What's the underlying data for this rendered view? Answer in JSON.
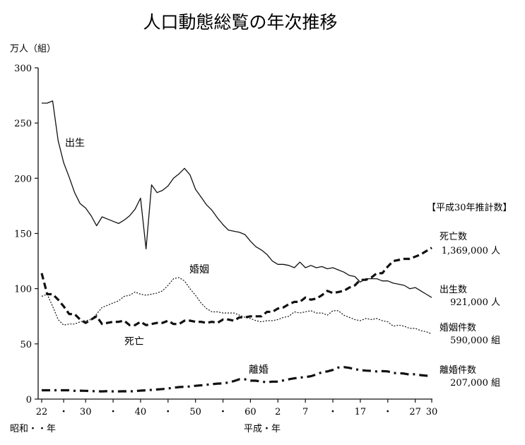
{
  "chart_data": {
    "type": "line",
    "title": "人口動態総覧の年次推移",
    "ylabel": "万人（組）",
    "ylim": [
      0,
      300
    ],
    "y_ticks": [
      "0",
      "50",
      "100",
      "150",
      "200",
      "250",
      "300"
    ],
    "x_ticks": [
      "22",
      "・",
      "30",
      "・",
      "40",
      "・",
      "50",
      "・",
      "60",
      "2",
      "7",
      "・",
      "17",
      "・",
      "27",
      "30"
    ],
    "era_labels": [
      "昭和・・年",
      "平成・年"
    ],
    "grid": false,
    "legend": "inline-right",
    "note_header": "【平成30年推計数】",
    "series": [
      {
        "name": "出生",
        "end_label": "出生数",
        "end_value": "921,000 人",
        "style": "solid",
        "x": [
          1947,
          1948,
          1949,
          1950,
          1951,
          1952,
          1953,
          1954,
          1955,
          1956,
          1957,
          1958,
          1959,
          1960,
          1961,
          1962,
          1963,
          1964,
          1965,
          1966,
          1967,
          1968,
          1969,
          1970,
          1971,
          1972,
          1973,
          1974,
          1975,
          1976,
          1977,
          1978,
          1979,
          1980,
          1981,
          1982,
          1983,
          1984,
          1985,
          1986,
          1987,
          1988,
          1989,
          1990,
          1991,
          1992,
          1993,
          1994,
          1995,
          1996,
          1997,
          1998,
          1999,
          2000,
          2001,
          2002,
          2003,
          2004,
          2005,
          2006,
          2007,
          2008,
          2009,
          2010,
          2011,
          2012,
          2013,
          2014,
          2015,
          2016,
          2017,
          2018
        ],
        "values": [
          268,
          268,
          270,
          234,
          214,
          201,
          187,
          177,
          173,
          166,
          157,
          165,
          163,
          161,
          159,
          162,
          166,
          172,
          182,
          136,
          194,
          187,
          189,
          193,
          200,
          204,
          209,
          203,
          190,
          183,
          176,
          171,
          164,
          158,
          153,
          152,
          151,
          149,
          143,
          138,
          135,
          131,
          125,
          122,
          122,
          121,
          119,
          124,
          119,
          121,
          119,
          120,
          118,
          119,
          117,
          115,
          112,
          111,
          106,
          109,
          109,
          109,
          107,
          107,
          105,
          104,
          103,
          100,
          101,
          98,
          95,
          92
        ]
      },
      {
        "name": "死亡",
        "end_label": "死亡数",
        "end_value": "1,369,000 人",
        "style": "dashed",
        "x": [
          1947,
          1948,
          1949,
          1950,
          1951,
          1952,
          1953,
          1954,
          1955,
          1956,
          1957,
          1958,
          1959,
          1960,
          1961,
          1962,
          1963,
          1964,
          1965,
          1966,
          1967,
          1968,
          1969,
          1970,
          1971,
          1972,
          1973,
          1974,
          1975,
          1976,
          1977,
          1978,
          1979,
          1980,
          1981,
          1982,
          1983,
          1984,
          1985,
          1986,
          1987,
          1988,
          1989,
          1990,
          1991,
          1992,
          1993,
          1994,
          1995,
          1996,
          1997,
          1998,
          1999,
          2000,
          2001,
          2002,
          2003,
          2004,
          2005,
          2006,
          2007,
          2008,
          2009,
          2010,
          2011,
          2012,
          2013,
          2014,
          2015,
          2016,
          2017,
          2018
        ],
        "values": [
          114,
          95,
          95,
          90,
          84,
          77,
          77,
          72,
          69,
          72,
          75,
          68,
          69,
          70,
          70,
          71,
          67,
          67,
          70,
          67,
          68,
          69,
          69,
          71,
          68,
          68,
          71,
          71,
          70,
          70,
          69,
          70,
          69,
          72,
          72,
          71,
          74,
          74,
          75,
          75,
          75,
          79,
          79,
          82,
          83,
          86,
          88,
          88,
          92,
          90,
          91,
          94,
          98,
          96,
          97,
          98,
          101,
          103,
          108,
          108,
          110,
          114,
          114,
          120,
          125,
          126,
          127,
          127,
          129,
          131,
          134,
          137
        ]
      },
      {
        "name": "婚姻",
        "end_label": "婚姻件数",
        "end_value": "590,000 組",
        "style": "dotted",
        "x": [
          1947,
          1948,
          1949,
          1950,
          1951,
          1952,
          1953,
          1954,
          1955,
          1956,
          1957,
          1958,
          1959,
          1960,
          1961,
          1962,
          1963,
          1964,
          1965,
          1966,
          1967,
          1968,
          1969,
          1970,
          1971,
          1972,
          1973,
          1974,
          1975,
          1976,
          1977,
          1978,
          1979,
          1980,
          1981,
          1982,
          1983,
          1984,
          1985,
          1986,
          1987,
          1988,
          1989,
          1990,
          1991,
          1992,
          1993,
          1994,
          1995,
          1996,
          1997,
          1998,
          1999,
          2000,
          2001,
          2002,
          2003,
          2004,
          2005,
          2006,
          2007,
          2008,
          2009,
          2010,
          2011,
          2012,
          2013,
          2014,
          2015,
          2016,
          2017,
          2018
        ],
        "values": [
          93,
          95,
          84,
          72,
          67,
          68,
          68,
          70,
          71,
          72,
          77,
          83,
          85,
          87,
          89,
          93,
          94,
          97,
          95,
          94,
          95,
          96,
          98,
          103,
          109,
          110,
          107,
          100,
          94,
          87,
          82,
          79,
          79,
          78,
          78,
          78,
          76,
          74,
          73,
          71,
          70,
          71,
          71,
          72,
          74,
          75,
          79,
          78,
          79,
          80,
          78,
          78,
          76,
          80,
          80,
          76,
          74,
          72,
          71,
          73,
          72,
          73,
          71,
          70,
          66,
          67,
          66,
          64,
          64,
          62,
          61,
          59
        ]
      },
      {
        "name": "離婚",
        "end_label": "離婚件数",
        "end_value": "207,000 組",
        "style": "dash-dot",
        "x": [
          1947,
          1948,
          1949,
          1950,
          1951,
          1952,
          1953,
          1954,
          1955,
          1956,
          1957,
          1958,
          1959,
          1960,
          1961,
          1962,
          1963,
          1964,
          1965,
          1966,
          1967,
          1968,
          1969,
          1970,
          1971,
          1972,
          1973,
          1974,
          1975,
          1976,
          1977,
          1978,
          1979,
          1980,
          1981,
          1982,
          1983,
          1984,
          1985,
          1986,
          1987,
          1988,
          1989,
          1990,
          1991,
          1992,
          1993,
          1994,
          1995,
          1996,
          1997,
          1998,
          1999,
          2000,
          2001,
          2002,
          2003,
          2004,
          2005,
          2006,
          2007,
          2008,
          2009,
          2010,
          2011,
          2012,
          2013,
          2014,
          2015,
          2016,
          2017,
          2018
        ],
        "values": [
          8,
          8,
          8,
          8,
          8,
          8,
          7.5,
          7.6,
          7.5,
          7.2,
          7.1,
          7.0,
          7.2,
          7.0,
          7.0,
          7.1,
          7.0,
          7.2,
          7.7,
          7.9,
          8.3,
          8.7,
          9.1,
          9.6,
          10.3,
          10.9,
          11.2,
          11.4,
          12,
          12.5,
          13,
          13.5,
          14,
          14.2,
          15,
          16.3,
          18,
          17.9,
          16.7,
          16.6,
          15.8,
          15.3,
          15.8,
          15.8,
          16.9,
          18,
          18.8,
          19.5,
          19.9,
          20.7,
          22.3,
          24.3,
          25.1,
          26.4,
          28.6,
          29,
          28.3,
          27.1,
          26.2,
          25.8,
          25.5,
          25,
          25.3,
          25.1,
          23.6,
          23.5,
          23.1,
          22.2,
          22.6,
          21.7,
          21.2,
          20.7
        ]
      }
    ],
    "annotations": [
      "出生",
      "婚姻",
      "死亡",
      "離婚"
    ]
  }
}
